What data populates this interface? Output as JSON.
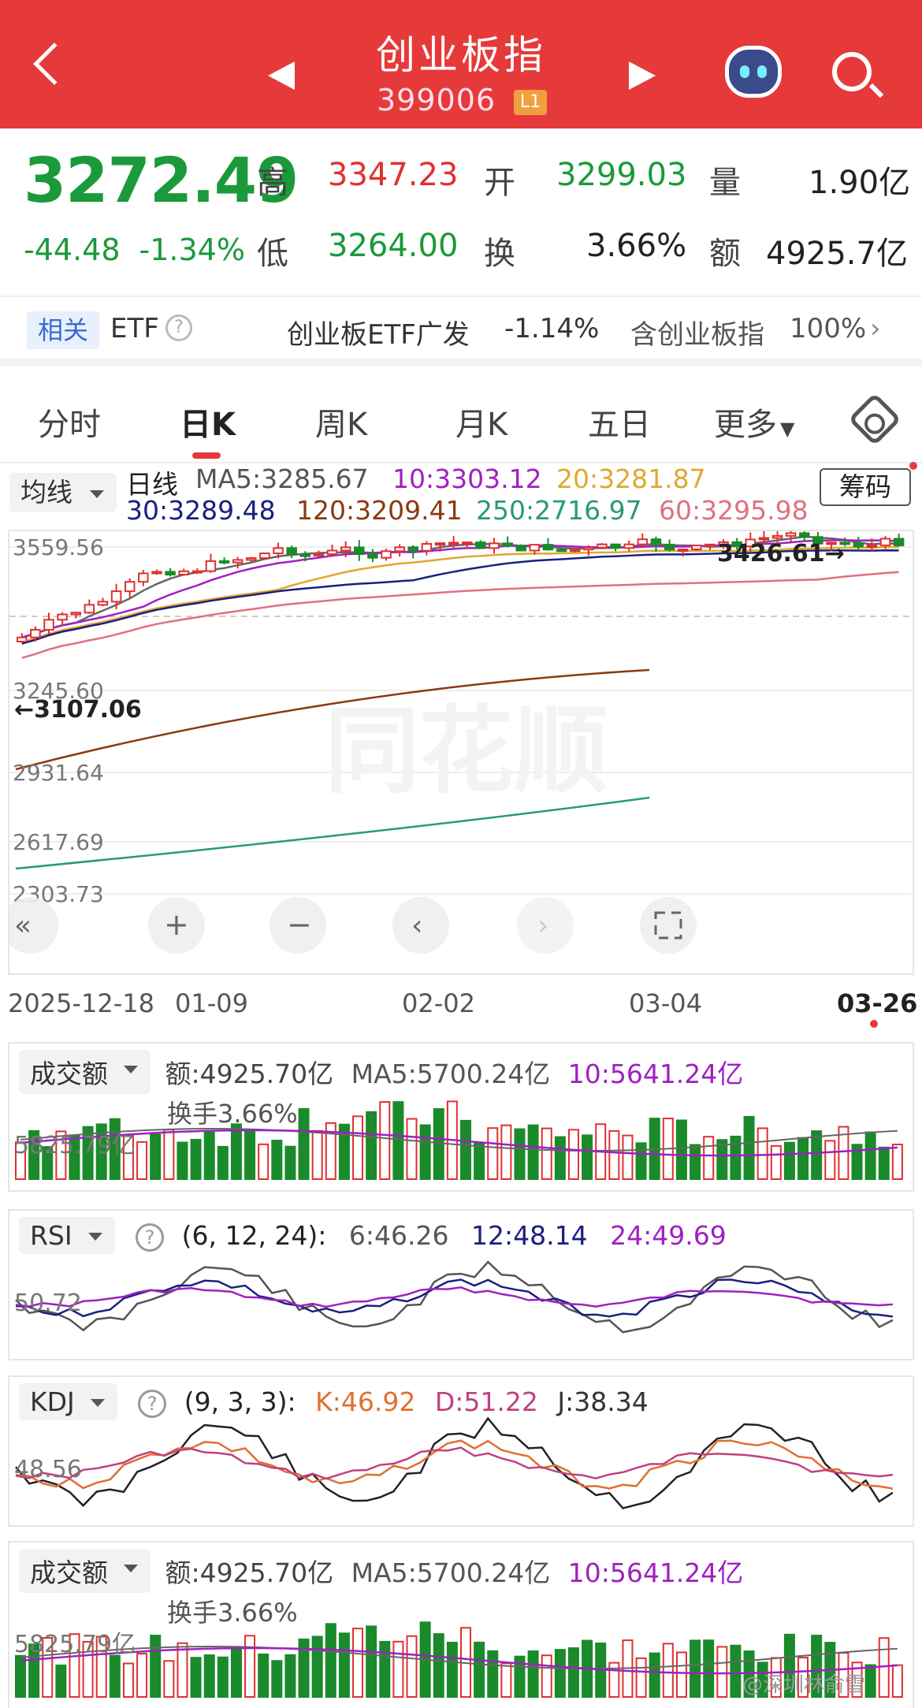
{
  "header": {
    "title": "创业板指",
    "code": "399006",
    "level_badge": "L1"
  },
  "quote": {
    "price": "3272.49",
    "change": "-44.48",
    "change_pct": "-1.34%",
    "high_label": "高",
    "high": "3347.23",
    "open_label": "开",
    "open": "3299.03",
    "vol_label": "量",
    "vol": "1.90亿",
    "low_label": "低",
    "low": "3264.00",
    "turn_label": "换",
    "turnover": "3.66%",
    "amt_label": "额",
    "amount": "4925.7亿"
  },
  "etf": {
    "tag": "相关",
    "label": "ETF",
    "name": "创业板ETF广发",
    "change": "-1.14%",
    "contains": "含创业板指",
    "weight": "100%"
  },
  "tabs": [
    "分时",
    "日K",
    "周K",
    "月K",
    "五日",
    "更多"
  ],
  "ma": {
    "selector": "均线",
    "kind": "日线",
    "ma5": "MA5:3285.67",
    "ma10": "10:3303.12",
    "ma20": "20:3281.87",
    "ma30": "30:3289.48",
    "ma120": "120:3209.41",
    "ma250": "250:2716.97",
    "ma60": "60:3295.98",
    "chip_button": "筹码"
  },
  "kline": {
    "y_labels": [
      "3559.56",
      "3245.60",
      "2931.64",
      "2617.69",
      "2303.73"
    ],
    "high_note": "3426.61→",
    "low_note": "←3107.06",
    "watermark": "同花顺",
    "x_labels": [
      "2025-12-18",
      "01-09",
      "02-02",
      "03-04",
      "03-26"
    ]
  },
  "chart_data": [
    {
      "type": "candlestick",
      "title": "创业板指 日K",
      "ylim": [
        2303.73,
        3559.56
      ],
      "x": [
        "2025-12-18",
        "01-09",
        "02-02",
        "03-04",
        "03-26"
      ],
      "high_label": 3426.61,
      "low_label": 3107.06,
      "last_close": 3272.49
    }
  ],
  "panels": {
    "vol1": {
      "selector": "成交额",
      "amt": "额:4925.70亿",
      "ma5": "MA5:5700.24亿",
      "ma10": "10:5641.24亿",
      "turn": "换手3.66%",
      "axis": "5825.79亿"
    },
    "rsi": {
      "selector": "RSI",
      "params": "(6, 12, 24):",
      "r6": "6:46.26",
      "r12": "12:48.14",
      "r24": "24:49.69",
      "axis": "50.72"
    },
    "kdj": {
      "selector": "KDJ",
      "params": "(9, 3, 3):",
      "k": "K:46.92",
      "d": "D:51.22",
      "j": "J:38.34",
      "axis": "48.56"
    },
    "vol2": {
      "selector": "成交额",
      "amt": "额:4925.70亿",
      "ma5": "MA5:5700.24亿",
      "ma10": "10:5641.24亿",
      "turn": "换手3.66%",
      "axis": "5825.79亿"
    }
  },
  "watermark_bottom": "@深圳林俞雪",
  "colors": {
    "up": "#e03030",
    "down": "#1a8a2a",
    "header": "#e63a3a"
  }
}
